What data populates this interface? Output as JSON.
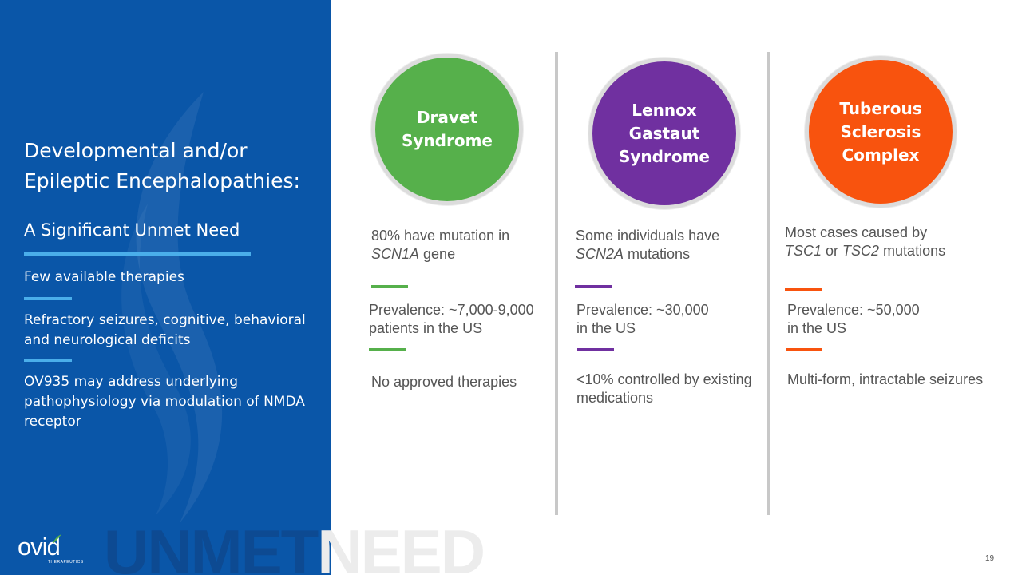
{
  "colors": {
    "panel_blue": "#0a56a8",
    "rule_blue": "#4aaeea",
    "dravet_green": "#56b04b",
    "lennox_purple": "#7030a0",
    "tuberous_orange": "#f8530e"
  },
  "sidebar": {
    "title_line1": "Developmental and/or",
    "title_line2": "Epileptic Encephalopathies:",
    "subtitle": "A Significant Unmet Need",
    "point1": "Few available therapies",
    "point2": "Refractory seizures, cognitive, behavioral and neurological deficits",
    "point3": "OV935 may address underlying pathophysiology via modulation of NMDA receptor"
  },
  "logo": {
    "wordmark": "ovid",
    "tagline": "THERAPEUTICS"
  },
  "watermark": {
    "part1": "UNMET",
    "part2": "NEED"
  },
  "columns": [
    {
      "name_line1": "Dravet",
      "name_line2": "Syndrome",
      "fact_pre": "80% have mutation in",
      "fact_gene": "SCN1A",
      "fact_post": " gene",
      "prevalence_line1": "Prevalence: ~7,000-9,000",
      "prevalence_line2": "patients in the US",
      "note": "No approved therapies"
    },
    {
      "name_line1": "Lennox",
      "name_line2": "Gastaut",
      "name_line3": "Syndrome",
      "fact_pre": "Some individuals have",
      "fact_gene": "SCN2A",
      "fact_post": " mutations",
      "prevalence_line1": "Prevalence: ~30,000",
      "prevalence_line2": "in the US",
      "note_line1": "<10% controlled by existing",
      "note_line2": "medications"
    },
    {
      "name_line1": "Tuberous",
      "name_line2": "Sclerosis",
      "name_line3": "Complex",
      "fact_pre": "Most cases caused by",
      "fact_gene1": "TSC1",
      "fact_mid": " or ",
      "fact_gene2": "TSC2",
      "fact_post": " mutations",
      "prevalence_line1": "Prevalence: ~50,000",
      "prevalence_line2": "in the US",
      "note": "Multi-form, intractable seizures"
    }
  ],
  "page_number": "19"
}
